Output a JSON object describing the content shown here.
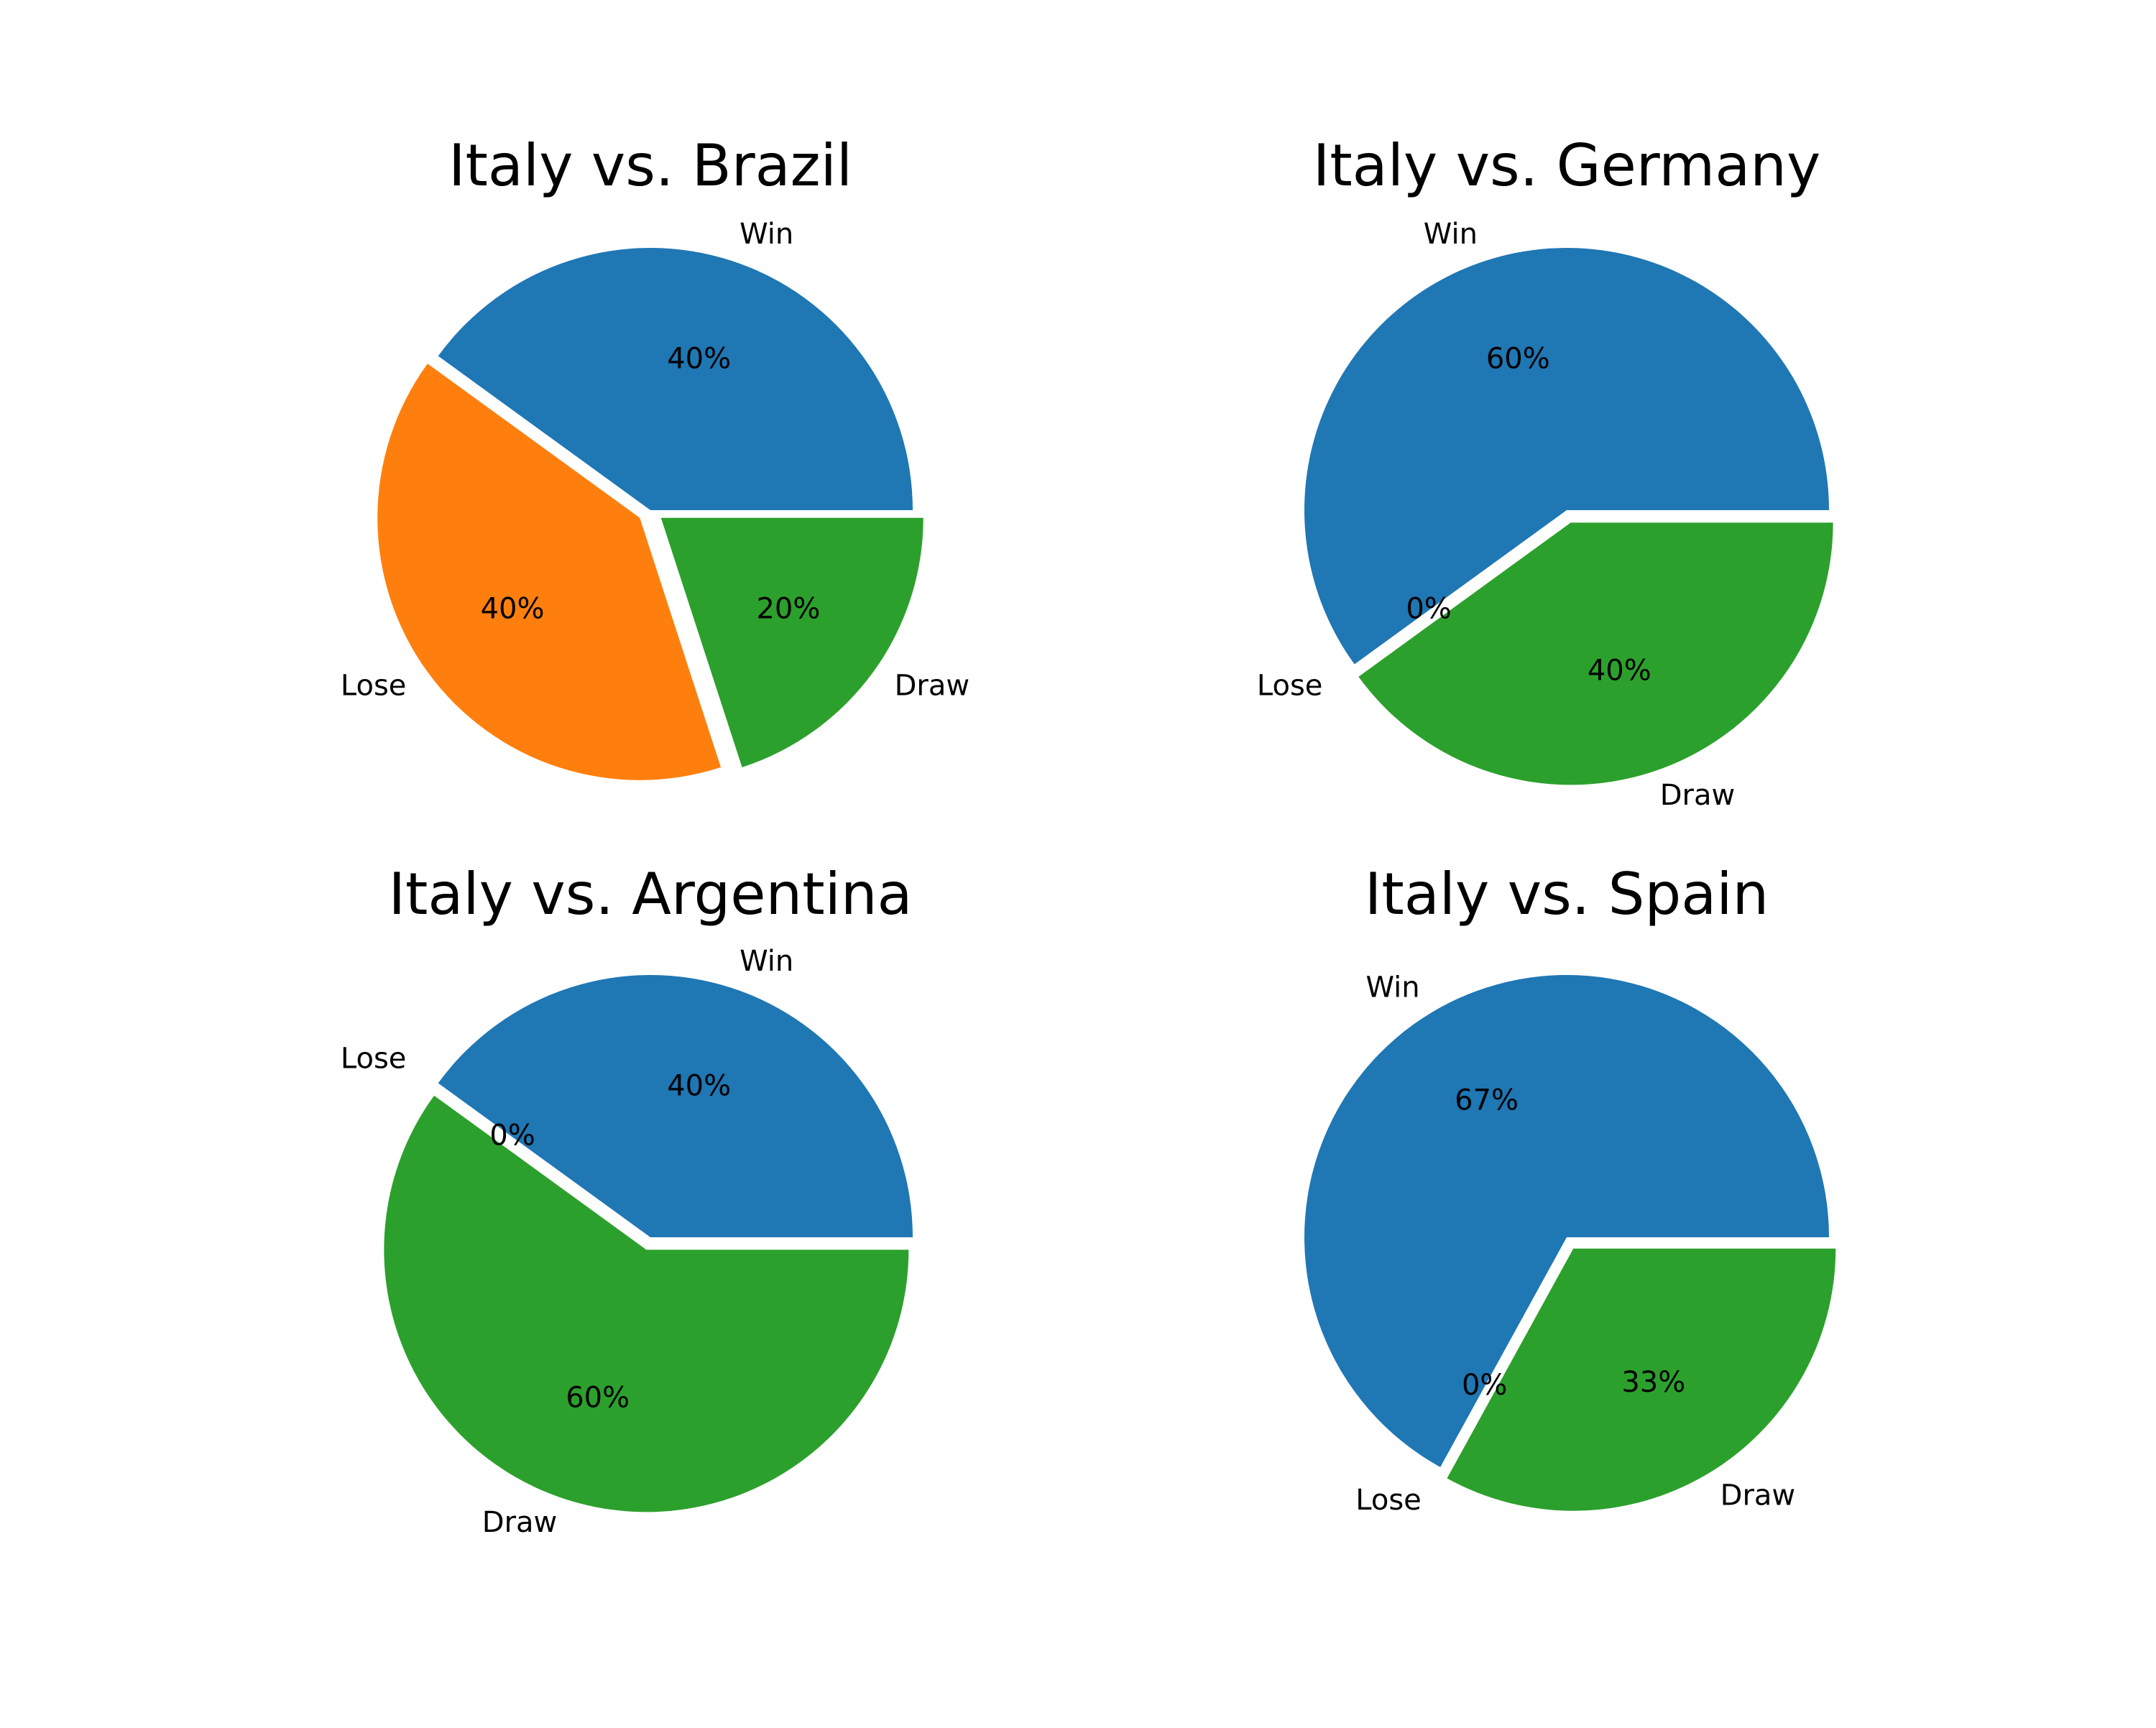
{
  "chart_data": [
    {
      "type": "pie",
      "title": "Italy vs. Brazil",
      "labels": [
        "Win",
        "Lose",
        "Draw"
      ],
      "values": [
        40,
        40,
        20
      ],
      "percent_labels": [
        "40%",
        "40%",
        "20%"
      ],
      "colors": [
        "#1f77b4",
        "#ff7f0e",
        "#2ca02c"
      ],
      "explode": [
        0,
        0.05,
        0.05
      ]
    },
    {
      "type": "pie",
      "title": "Italy vs. Germany",
      "labels": [
        "Win",
        "Lose",
        "Draw"
      ],
      "values": [
        60,
        0,
        40
      ],
      "percent_labels": [
        "60%",
        "0%",
        "40%"
      ],
      "colors": [
        "#1f77b4",
        "#ff7f0e",
        "#2ca02c"
      ],
      "explode": [
        0,
        0.05,
        0.05
      ]
    },
    {
      "type": "pie",
      "title": "Italy vs. Argentina",
      "labels": [
        "Win",
        "Lose",
        "Draw"
      ],
      "values": [
        40,
        0,
        60
      ],
      "percent_labels": [
        "40%",
        "0%",
        "60%"
      ],
      "colors": [
        "#1f77b4",
        "#ff7f0e",
        "#2ca02c"
      ],
      "explode": [
        0,
        0.05,
        0.05
      ]
    },
    {
      "type": "pie",
      "title": "Italy vs. Spain",
      "labels": [
        "Win",
        "Lose",
        "Draw"
      ],
      "values": [
        67,
        0,
        33
      ],
      "percent_labels": [
        "67%",
        "0%",
        "33%"
      ],
      "colors": [
        "#1f77b4",
        "#ff7f0e",
        "#2ca02c"
      ],
      "explode": [
        0,
        0.05,
        0.05
      ]
    }
  ]
}
